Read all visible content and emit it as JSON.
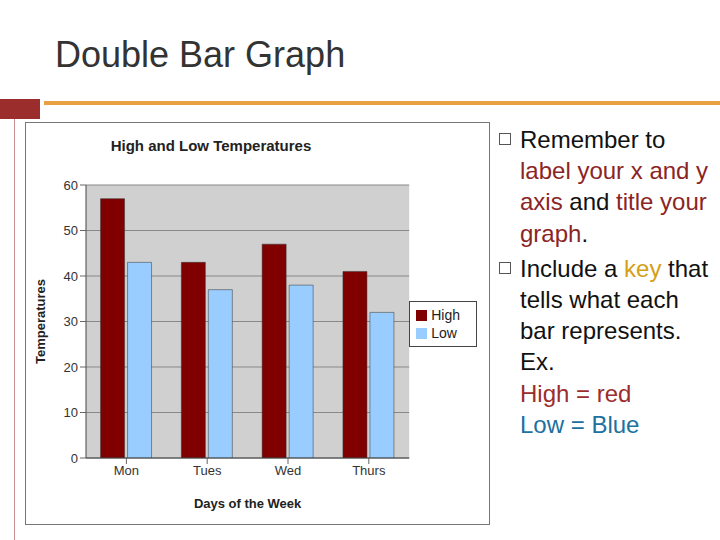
{
  "title": "Double Bar Graph",
  "chart_data": {
    "type": "bar",
    "title": "High and Low Temperatures",
    "x_label": "Days of the Week",
    "y_label": "Temperatures",
    "categories": [
      "Mon",
      "Tues",
      "Wed",
      "Thurs"
    ],
    "series": [
      {
        "name": "High",
        "color": "#800000",
        "values": [
          57,
          43,
          47,
          41
        ]
      },
      {
        "name": "Low",
        "color": "#99ccff",
        "values": [
          43,
          37,
          38,
          32
        ]
      }
    ],
    "ylim": [
      0,
      60
    ],
    "yticks": [
      0,
      10,
      20,
      30,
      40,
      50,
      60
    ],
    "grid": true,
    "legend": "right"
  },
  "bullets": [
    {
      "segments": [
        {
          "text": "Remember to "
        },
        {
          "text": "label your x and y axis",
          "color": "#8b2525"
        },
        {
          "text": " and "
        },
        {
          "text": "title your graph",
          "color": "#8b2525"
        },
        {
          "text": "."
        }
      ]
    },
    {
      "segments": [
        {
          "text": "Include a "
        },
        {
          "text": "key",
          "color": "#d4a017"
        },
        {
          "text": " that tells what each bar represents. Ex."
        }
      ],
      "examples": [
        {
          "text": "High = red",
          "color": "#9b2d2d"
        },
        {
          "text": "Low = Blue",
          "color": "#2070a0"
        }
      ]
    }
  ]
}
